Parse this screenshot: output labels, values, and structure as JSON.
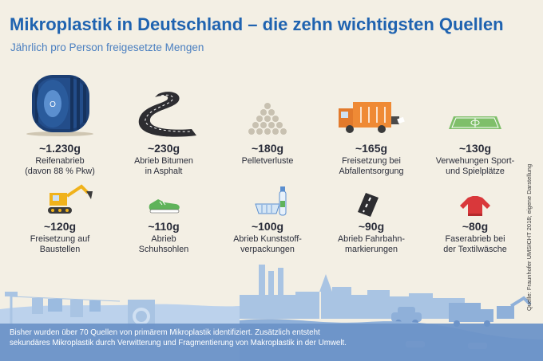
{
  "title": "Mikroplastik in Deutschland – die zehn wichtigsten Quellen",
  "subtitle": "Jährlich pro Person freigesetzte Mengen",
  "colors": {
    "title": "#1f63b0",
    "background": "#f3efe4",
    "skyline": "#a9c4e3",
    "footer_band": "#6d93c8"
  },
  "items": [
    {
      "value": "~1.230g",
      "label_1": "Reifenabrieb",
      "label_2": "(davon 88 % Pkw)",
      "icon": "tire-icon"
    },
    {
      "value": "~230g",
      "label_1": "Abrieb Bitumen",
      "label_2": "in Asphalt",
      "icon": "road-icon"
    },
    {
      "value": "~180g",
      "label_1": "Pelletverluste",
      "label_2": "",
      "icon": "pellets-icon"
    },
    {
      "value": "~165g",
      "label_1": "Freisetzung bei",
      "label_2": "Abfallentsorgung",
      "icon": "garbage-truck-icon"
    },
    {
      "value": "~130g",
      "label_1": "Verwehungen Sport-",
      "label_2": "und Spielplätze",
      "icon": "sports-field-icon"
    },
    {
      "value": "~120g",
      "label_1": "Freisetzung auf",
      "label_2": "Baustellen",
      "icon": "excavator-icon"
    },
    {
      "value": "~110g",
      "label_1": "Abrieb",
      "label_2": "Schuhsohlen",
      "icon": "shoe-icon"
    },
    {
      "value": "~100g",
      "label_1": "Abrieb Kunststoff-",
      "label_2": "verpackungen",
      "icon": "packaging-icon"
    },
    {
      "value": "~90g",
      "label_1": "Abrieb Fahrbahn-",
      "label_2": "markierungen",
      "icon": "road-marking-icon"
    },
    {
      "value": "~80g",
      "label_1": "Faserabrieb bei",
      "label_2": "der Textilwäsche",
      "icon": "sweater-icon"
    }
  ],
  "footer_line_1": "Bisher wurden über 70 Quellen von primärem Mikroplastik identifiziert. Zusätzlich entsteht",
  "footer_line_2": "sekundäres Mikroplastik durch Verwitterung und Fragmentierung von Makroplastik in der Umwelt.",
  "source": "Quelle: Fraunhofer UMSICHT 2018; eigene Darstellung",
  "tire_letter": "O"
}
